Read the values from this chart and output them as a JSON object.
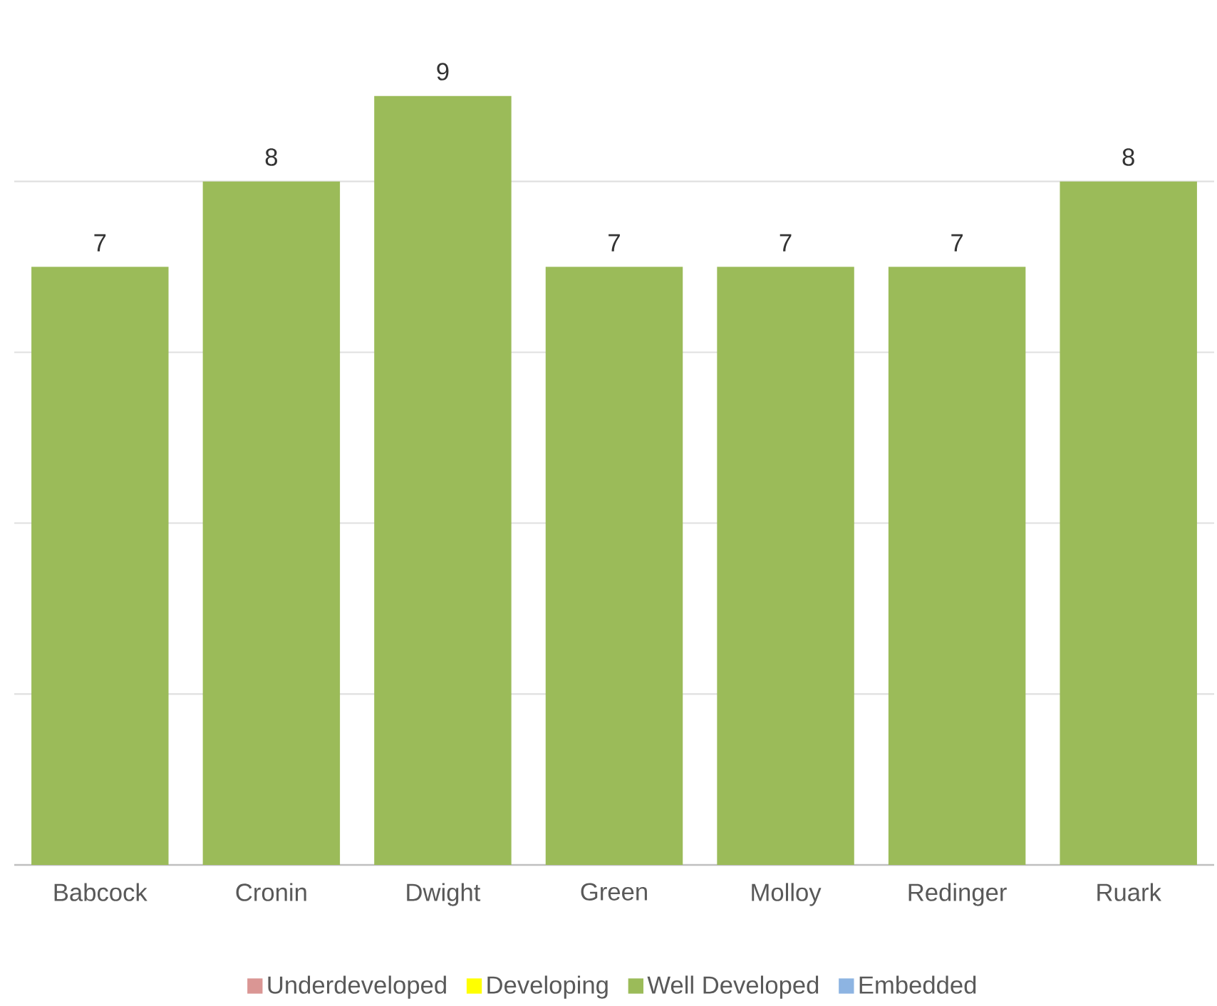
{
  "chart_data": {
    "type": "bar",
    "categories": [
      "Babcock",
      "Cronin",
      "Dwight",
      "Green",
      "Molloy",
      "Redinger",
      "Ruark"
    ],
    "series": [
      {
        "name": "Underdeveloped",
        "color": "#da9694",
        "values": [
          null,
          null,
          null,
          null,
          null,
          null,
          null
        ]
      },
      {
        "name": "Developing",
        "color": "#ffff00",
        "values": [
          null,
          null,
          null,
          null,
          null,
          null,
          null
        ]
      },
      {
        "name": "Well Developed",
        "color": "#9bbb59",
        "values": [
          7,
          8,
          9,
          7,
          7,
          7,
          8
        ]
      },
      {
        "name": "Embedded",
        "color": "#8db4e2",
        "values": [
          null,
          null,
          null,
          null,
          null,
          null,
          null
        ]
      }
    ],
    "tick_labels": "x",
    "grid": "y",
    "legend": "bottom",
    "data_labels": true
  }
}
